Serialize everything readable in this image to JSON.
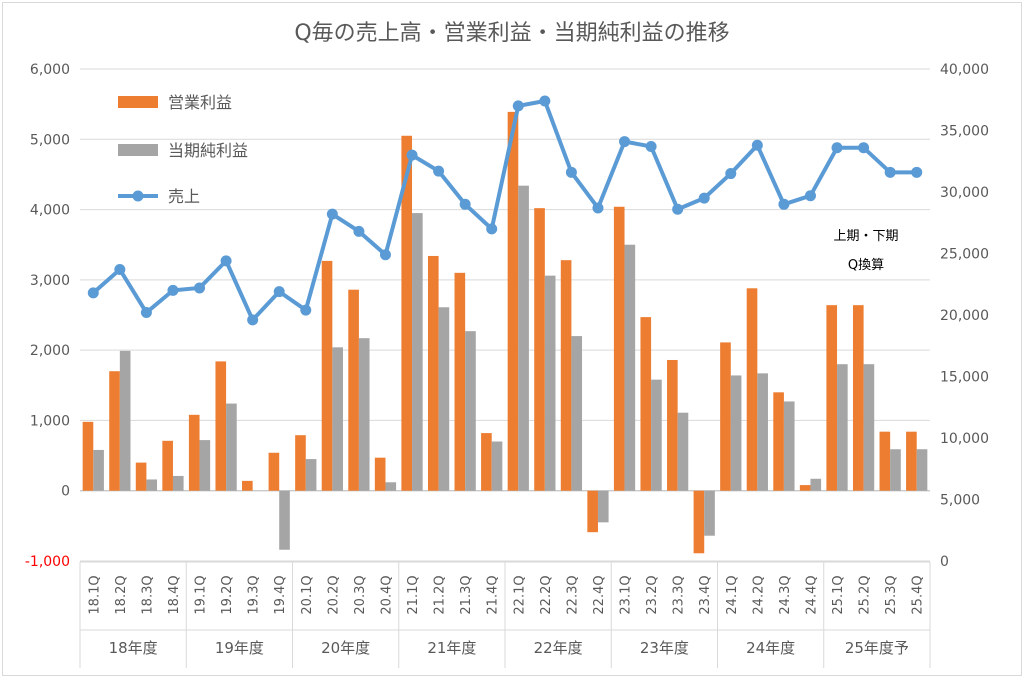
{
  "chart_data": {
    "type": "bar",
    "title": "Q毎の売上高・営業利益・当期純利益の推移",
    "categories": [
      "18.1Q",
      "18.2Q",
      "18.3Q",
      "18.4Q",
      "19.1Q",
      "19.2Q",
      "19.3Q",
      "19.4Q",
      "20.1Q",
      "20.2Q",
      "20.3Q",
      "20.4Q",
      "21.1Q",
      "21.2Q",
      "21.3Q",
      "21.4Q",
      "22.1Q",
      "22.2Q",
      "22.3Q",
      "22.4Q",
      "23.1Q",
      "23.2Q",
      "23.3Q",
      "23.4Q",
      "24.1Q",
      "24.2Q",
      "24.3Q",
      "24.4Q",
      "25.1Q",
      "25.2Q",
      "25.3Q",
      "25.4Q"
    ],
    "groups": [
      "18年度",
      "19年度",
      "20年度",
      "21年度",
      "22年度",
      "23年度",
      "24年度",
      "25年度予"
    ],
    "series": [
      {
        "name": "営業利益",
        "axis": "left",
        "kind": "bar",
        "color": "#ED7D31",
        "values": [
          980,
          1700,
          400,
          710,
          1080,
          1840,
          140,
          540,
          790,
          3270,
          2860,
          470,
          5050,
          3340,
          3100,
          820,
          5390,
          4020,
          3280,
          -590,
          4040,
          2470,
          1860,
          -890,
          2110,
          2880,
          1400,
          80,
          2640,
          2640,
          840,
          840
        ]
      },
      {
        "name": "当期純利益",
        "axis": "left",
        "kind": "bar",
        "color": "#A5A5A5",
        "values": [
          580,
          1990,
          160,
          210,
          720,
          1240,
          0,
          -840,
          450,
          2040,
          2170,
          120,
          3950,
          2610,
          2270,
          700,
          4340,
          3060,
          2200,
          -450,
          3500,
          1580,
          1110,
          -640,
          1640,
          1670,
          1270,
          170,
          1800,
          1800,
          590,
          590
        ]
      },
      {
        "name": "売上",
        "axis": "right",
        "kind": "line",
        "color": "#5B9BD5",
        "values": [
          21800,
          23700,
          20200,
          22000,
          22200,
          24400,
          19600,
          21900,
          20400,
          28200,
          26800,
          24900,
          33000,
          31700,
          29000,
          27000,
          37000,
          37400,
          31600,
          28700,
          34100,
          33700,
          28600,
          29500,
          31500,
          33800,
          29000,
          29700,
          33600,
          33600,
          31600,
          31600
        ]
      }
    ],
    "y_left": {
      "ylim": [
        -1000,
        6000
      ],
      "ticks": [
        "-1,000",
        "0",
        "1,000",
        "2,000",
        "3,000",
        "4,000",
        "5,000",
        "6,000"
      ],
      "negative_color": "#FF0000"
    },
    "y_right": {
      "ylim": [
        0,
        40000
      ],
      "ticks": [
        "0",
        "5,000",
        "10,000",
        "15,000",
        "20,000",
        "25,000",
        "30,000",
        "35,000",
        "40,000"
      ]
    },
    "annotation": [
      "上期・下期",
      "Q換算"
    ],
    "grid": true,
    "legend": "top-left"
  }
}
